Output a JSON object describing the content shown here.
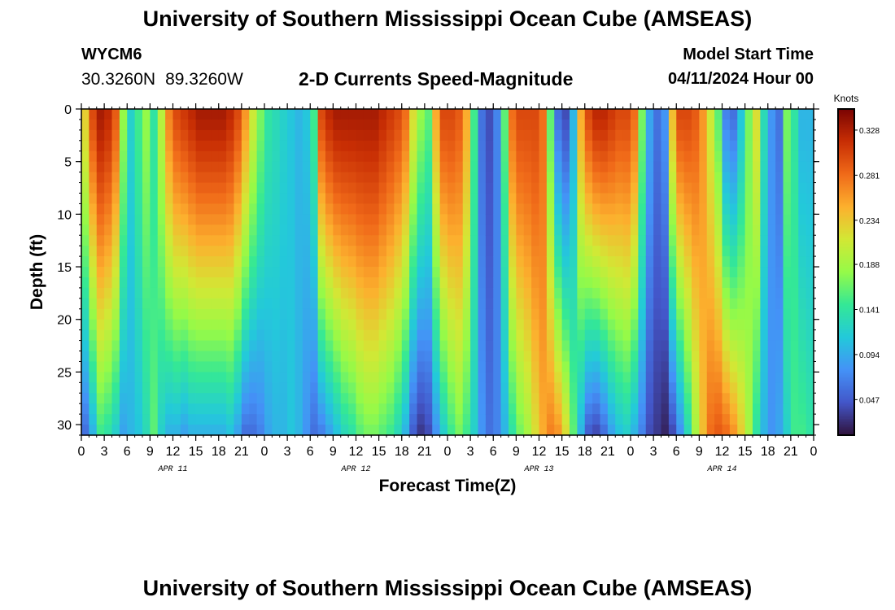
{
  "header": {
    "title": "University of Southern Mississippi Ocean Cube (AMSEAS)",
    "station_id": "WYCM6",
    "lat": "30.3260N",
    "lon": "89.3260W",
    "subtitle": "2-D Currents Speed-Magnitude",
    "model_start_label": "Model Start Time",
    "model_start_value": "04/11/2024 Hour 00"
  },
  "footer": {
    "title": "University of Southern Mississippi Ocean Cube (AMSEAS)"
  },
  "colors": {
    "background": "#ffffff",
    "text": "#000000"
  },
  "chart_data": {
    "type": "heatmap",
    "title": "2-D Currents Speed-Magnitude",
    "xlabel": "Forecast Time(Z)",
    "ylabel": "Depth (ft)",
    "x_unit": "hours since 04/11/2024 00Z",
    "xlim": [
      0,
      96
    ],
    "ylim": [
      0,
      31
    ],
    "y_inverted": true,
    "x_ticks": [
      {
        "hour": 0,
        "label": "0"
      },
      {
        "hour": 3,
        "label": "3"
      },
      {
        "hour": 6,
        "label": "6"
      },
      {
        "hour": 9,
        "label": "9"
      },
      {
        "hour": 12,
        "label": "12"
      },
      {
        "hour": 15,
        "label": "15"
      },
      {
        "hour": 18,
        "label": "18"
      },
      {
        "hour": 21,
        "label": "21"
      },
      {
        "hour": 24,
        "label": "0"
      },
      {
        "hour": 27,
        "label": "3"
      },
      {
        "hour": 30,
        "label": "6"
      },
      {
        "hour": 33,
        "label": "9"
      },
      {
        "hour": 36,
        "label": "12"
      },
      {
        "hour": 39,
        "label": "15"
      },
      {
        "hour": 42,
        "label": "18"
      },
      {
        "hour": 45,
        "label": "21"
      },
      {
        "hour": 48,
        "label": "0"
      },
      {
        "hour": 51,
        "label": "3"
      },
      {
        "hour": 54,
        "label": "6"
      },
      {
        "hour": 57,
        "label": "9"
      },
      {
        "hour": 60,
        "label": "12"
      },
      {
        "hour": 63,
        "label": "15"
      },
      {
        "hour": 66,
        "label": "18"
      },
      {
        "hour": 69,
        "label": "21"
      },
      {
        "hour": 72,
        "label": "0"
      },
      {
        "hour": 75,
        "label": "3"
      },
      {
        "hour": 78,
        "label": "6"
      },
      {
        "hour": 81,
        "label": "9"
      },
      {
        "hour": 84,
        "label": "12"
      },
      {
        "hour": 87,
        "label": "15"
      },
      {
        "hour": 90,
        "label": "18"
      },
      {
        "hour": 93,
        "label": "21"
      },
      {
        "hour": 96,
        "label": "0"
      }
    ],
    "day_labels": [
      {
        "hour": 12,
        "label": "APR 11"
      },
      {
        "hour": 36,
        "label": "APR 12"
      },
      {
        "hour": 60,
        "label": "APR 13"
      },
      {
        "hour": 84,
        "label": "APR 14"
      }
    ],
    "y_ticks": [
      0,
      5,
      10,
      15,
      20,
      25,
      30
    ],
    "colorbar": {
      "title": "Knots",
      "ticks": [
        0.328,
        0.281,
        0.234,
        0.188,
        0.141,
        0.094,
        0.047
      ],
      "range": [
        0.01,
        0.35
      ]
    },
    "depth_profile_hours": [
      0,
      1,
      2,
      3,
      4,
      5,
      6,
      7,
      8,
      9,
      10,
      11,
      12,
      13,
      14,
      15,
      16,
      17,
      18,
      19,
      20,
      21,
      22,
      23,
      24,
      25,
      26,
      27,
      28,
      29,
      30,
      31,
      32,
      33,
      34,
      35,
      36,
      37,
      38,
      39,
      40,
      41,
      42,
      43,
      44,
      45,
      46,
      47,
      48,
      49,
      50,
      51,
      52,
      53,
      54,
      55,
      56,
      57,
      58,
      59,
      60,
      61,
      62,
      63,
      64,
      65,
      66,
      67,
      68,
      69,
      70,
      71,
      72,
      73,
      74,
      75,
      76,
      77,
      78,
      79,
      80,
      81,
      82,
      83,
      84,
      85,
      86,
      87,
      88,
      89,
      90,
      91,
      92,
      93,
      94,
      95,
      96
    ],
    "surface_speed_knots": [
      0.23,
      0.3,
      0.33,
      0.32,
      0.29,
      0.18,
      0.12,
      0.15,
      0.18,
      0.14,
      0.2,
      0.27,
      0.3,
      0.31,
      0.32,
      0.33,
      0.33,
      0.33,
      0.33,
      0.32,
      0.3,
      0.26,
      0.21,
      0.17,
      0.14,
      0.13,
      0.12,
      0.11,
      0.1,
      0.11,
      0.15,
      0.3,
      0.32,
      0.33,
      0.33,
      0.33,
      0.33,
      0.33,
      0.33,
      0.32,
      0.31,
      0.3,
      0.28,
      0.22,
      0.18,
      0.16,
      0.25,
      0.3,
      0.3,
      0.29,
      0.25,
      0.15,
      0.06,
      0.04,
      0.07,
      0.16,
      0.28,
      0.3,
      0.3,
      0.3,
      0.28,
      0.16,
      0.06,
      0.04,
      0.1,
      0.25,
      0.3,
      0.32,
      0.32,
      0.31,
      0.3,
      0.3,
      0.28,
      0.17,
      0.09,
      0.06,
      0.08,
      0.24,
      0.3,
      0.3,
      0.29,
      0.26,
      0.21,
      0.16,
      0.07,
      0.06,
      0.11,
      0.17,
      0.22,
      0.13,
      0.08,
      0.06,
      0.17,
      0.14,
      0.1,
      0.1,
      0.14
    ],
    "bottom_speed_knots": [
      0.06,
      0.1,
      0.15,
      0.14,
      0.12,
      0.09,
      0.1,
      0.11,
      0.13,
      0.16,
      0.12,
      0.1,
      0.1,
      0.09,
      0.1,
      0.1,
      0.1,
      0.1,
      0.1,
      0.11,
      0.09,
      0.06,
      0.06,
      0.07,
      0.09,
      0.1,
      0.1,
      0.11,
      0.1,
      0.08,
      0.06,
      0.07,
      0.09,
      0.11,
      0.13,
      0.14,
      0.16,
      0.17,
      0.17,
      0.16,
      0.15,
      0.13,
      0.1,
      0.05,
      0.03,
      0.04,
      0.08,
      0.12,
      0.15,
      0.17,
      0.15,
      0.12,
      0.08,
      0.06,
      0.07,
      0.1,
      0.14,
      0.17,
      0.19,
      0.22,
      0.25,
      0.27,
      0.26,
      0.22,
      0.16,
      0.1,
      0.05,
      0.04,
      0.06,
      0.09,
      0.11,
      0.12,
      0.1,
      0.07,
      0.04,
      0.03,
      0.02,
      0.04,
      0.08,
      0.13,
      0.19,
      0.24,
      0.28,
      0.29,
      0.28,
      0.26,
      0.23,
      0.19,
      0.14,
      0.1,
      0.08,
      0.09,
      0.12,
      0.15,
      0.15,
      0.14,
      0.13
    ]
  }
}
